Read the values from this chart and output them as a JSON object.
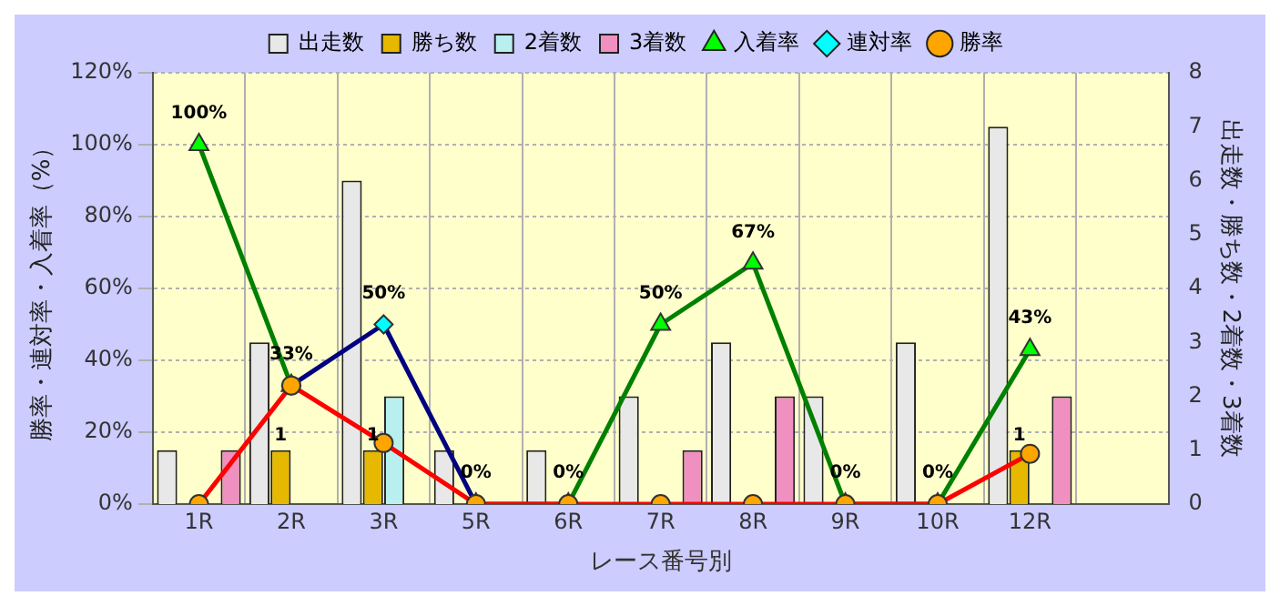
{
  "chart_data": {
    "type": "bar",
    "categories": [
      "1R",
      "2R",
      "3R",
      "5R",
      "6R",
      "7R",
      "8R",
      "9R",
      "10R",
      "12R",
      null
    ],
    "xlabel": "レース番号別",
    "ylabel": "勝率・連対率・入着率（%）",
    "y2label": "出走数・勝ち数・2着数・3着数",
    "series": [
      {
        "name": "出走数",
        "axis": "y2",
        "color": "#e8e8e8",
        "values": [
          1,
          3,
          6,
          1,
          1,
          2,
          3,
          2,
          3,
          7,
          null
        ]
      },
      {
        "name": "勝ち数",
        "axis": "y2",
        "color": "#e6b800",
        "values": [
          0,
          1,
          1,
          0,
          0,
          0,
          0,
          0,
          0,
          1,
          null
        ],
        "value_labels": [
          null,
          "1",
          "1",
          null,
          null,
          null,
          null,
          null,
          null,
          "1",
          null
        ]
      },
      {
        "name": "2着数",
        "axis": "y2",
        "color": "#b8f0f0",
        "values": [
          0,
          0,
          2,
          0,
          0,
          0,
          0,
          0,
          0,
          0,
          null
        ]
      },
      {
        "name": "3着数",
        "axis": "y2",
        "color": "#f090c0",
        "values": [
          1,
          0,
          0,
          0,
          0,
          1,
          2,
          0,
          0,
          2,
          null
        ]
      },
      {
        "name": "入着率",
        "type": "line",
        "color": "#008000",
        "marker": "triangle",
        "values": [
          100,
          33,
          null,
          0,
          0,
          50,
          67,
          0,
          0,
          43,
          null
        ],
        "value_labels": [
          "100%",
          "33%",
          null,
          "0%",
          "0%",
          "50%",
          "67%",
          "0%",
          "0%",
          "43%",
          null
        ]
      },
      {
        "name": "連対率",
        "type": "line",
        "color": "#000080",
        "marker": "diamond",
        "values": [
          null,
          33,
          50,
          0,
          null,
          null,
          null,
          null,
          null,
          null,
          null
        ],
        "value_labels": [
          null,
          null,
          "50%",
          null,
          null,
          null,
          null,
          null,
          null,
          null,
          null
        ]
      },
      {
        "name": "勝率",
        "type": "line",
        "color": "#ff0000",
        "marker": "circle",
        "values": [
          0,
          33,
          17,
          0,
          0,
          0,
          0,
          0,
          0,
          14,
          null
        ]
      }
    ],
    "ylim": [
      0,
      120
    ],
    "yticks": [
      {
        "value": 0,
        "label": "0%"
      },
      {
        "value": 20,
        "label": "20%"
      },
      {
        "value": 40,
        "label": "40%"
      },
      {
        "value": 60,
        "label": "60%"
      },
      {
        "value": 80,
        "label": "80%"
      },
      {
        "value": 100,
        "label": "100%"
      },
      {
        "value": 120,
        "label": "120%"
      }
    ],
    "y2lim": [
      0,
      8
    ],
    "y2ticks": [
      0,
      1,
      2,
      3,
      4,
      5,
      6,
      7,
      8
    ],
    "grid": true,
    "legend": "top"
  }
}
